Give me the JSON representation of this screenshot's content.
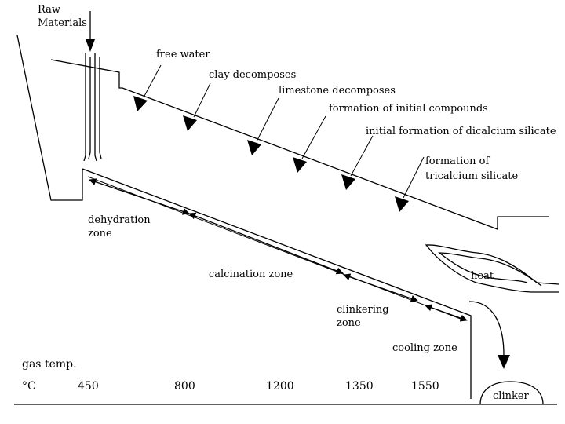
{
  "input": {
    "line1": "Raw",
    "line2": "Materials"
  },
  "reactions": [
    {
      "text": "free water"
    },
    {
      "text": "clay decomposes"
    },
    {
      "text": "limestone decomposes"
    },
    {
      "text": "formation of initial compounds"
    },
    {
      "text": "initial formation of dicalcium silicate"
    },
    {
      "line1": "formation of",
      "line2": "tricalcium silicate"
    }
  ],
  "zones": [
    {
      "line1": "dehydration",
      "line2": "zone"
    },
    {
      "line1": "calcination zone"
    },
    {
      "line1": "clinkering",
      "line2": "zone"
    },
    {
      "line1": "cooling zone"
    }
  ],
  "heat_label": "heat",
  "output_label": "clinker",
  "gas_temp": {
    "label": "gas temp.",
    "unit": "°C",
    "values": [
      "450",
      "800",
      "1200",
      "1350",
      "1550"
    ]
  }
}
